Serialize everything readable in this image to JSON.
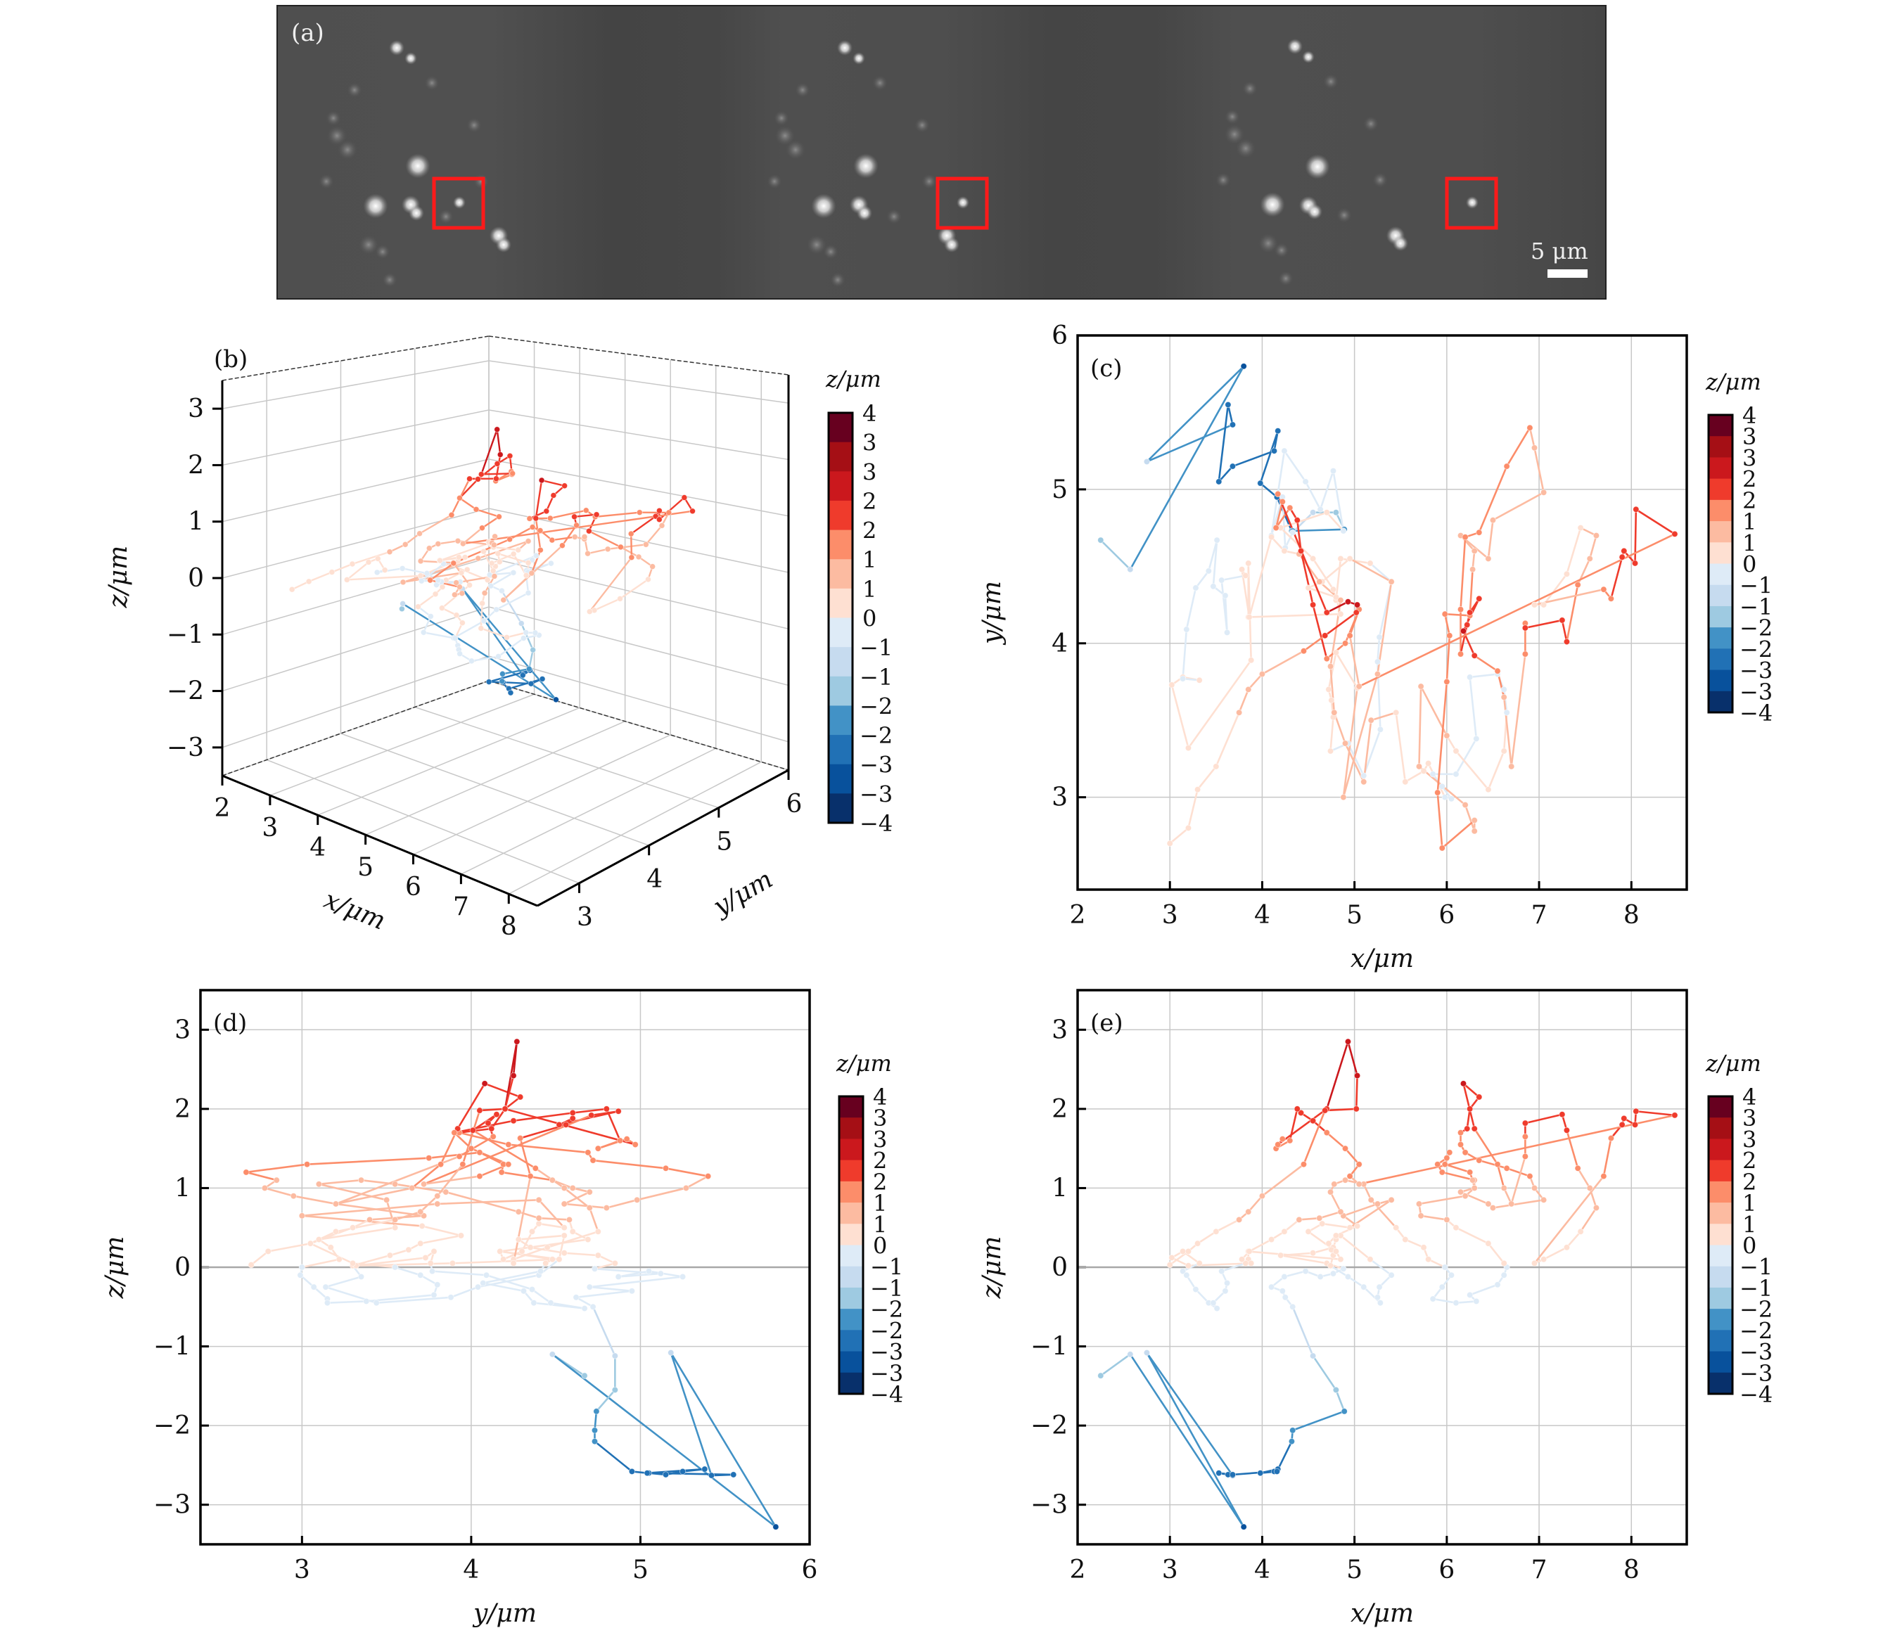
{
  "figure": {
    "panel_a": {
      "label": "(a)",
      "frames": 3,
      "scale_bar_label": "5 μm",
      "roi_color": "#ff1a1a",
      "background_color": "#4a4a4a"
    }
  },
  "chart_data": [
    {
      "id": "b",
      "type": "line3d",
      "label": "(b)",
      "title": "",
      "xlabel": "x/μm",
      "ylabel": "y/μm",
      "zlabel": "z/μm",
      "xlim": [
        2,
        8.6
      ],
      "ylim": [
        2.4,
        6
      ],
      "zlim": [
        -3.5,
        3.5
      ],
      "xticks": [
        "2",
        "3",
        "4",
        "5",
        "6",
        "7",
        "8"
      ],
      "yticks": [
        "3",
        "4",
        "5",
        "6"
      ],
      "zticks": [
        "−3",
        "−2",
        "−1",
        "0",
        "1",
        "2",
        "3"
      ],
      "grid": true,
      "colorbar": true
    },
    {
      "id": "c",
      "type": "line",
      "label": "(c)",
      "projection": "xy",
      "xlabel": "x/μm",
      "ylabel": "y/μm",
      "xlim": [
        2,
        8.6
      ],
      "ylim": [
        2.4,
        6
      ],
      "xticks": [
        "2",
        "3",
        "4",
        "5",
        "6",
        "7",
        "8"
      ],
      "yticks": [
        "3",
        "4",
        "5",
        "6"
      ],
      "grid": true,
      "colorbar": true
    },
    {
      "id": "d",
      "type": "line",
      "label": "(d)",
      "projection": "yz",
      "xlabel": "y/μm",
      "ylabel": "z/μm",
      "xlim": [
        2.4,
        6
      ],
      "ylim": [
        -3.5,
        3.5
      ],
      "xticks": [
        "3",
        "4",
        "5",
        "6"
      ],
      "yticks": [
        "−3",
        "−2",
        "−1",
        "0",
        "1",
        "2",
        "3"
      ],
      "grid": true,
      "colorbar": true
    },
    {
      "id": "e",
      "type": "line",
      "label": "(e)",
      "projection": "xz",
      "xlabel": "x/μm",
      "ylabel": "z/μm",
      "xlim": [
        2,
        8.6
      ],
      "ylim": [
        -3.5,
        3.5
      ],
      "xticks": [
        "2",
        "3",
        "4",
        "5",
        "6",
        "7",
        "8"
      ],
      "yticks": [
        "−3",
        "−2",
        "−1",
        "0",
        "1",
        "2",
        "3"
      ],
      "grid": true,
      "colorbar": true
    }
  ],
  "colorbar": {
    "title": "z/μm",
    "range": [
      -4,
      4
    ],
    "tick_labels": [
      "4",
      "3",
      "3",
      "2",
      "2",
      "1",
      "1",
      "0",
      "−1",
      "−1",
      "−2",
      "−2",
      "−3",
      "−3",
      "−4"
    ],
    "colors": [
      "#67001f",
      "#a50f15",
      "#cb181d",
      "#ef3b2c",
      "#fc8d6a",
      "#fcbba1",
      "#fee0d2",
      "#deebf7",
      "#c6dbef",
      "#9ecae1",
      "#4292c6",
      "#2171b5",
      "#08519c",
      "#08306b"
    ]
  },
  "trajectory": {
    "units": "μm",
    "points": [
      [
        2.25,
        4.67,
        -1.37
      ],
      [
        2.57,
        4.48,
        -1.1
      ],
      [
        3.8,
        5.8,
        -3.28
      ],
      [
        2.75,
        5.18,
        -1.08
      ],
      [
        3.68,
        5.42,
        -2.63
      ],
      [
        3.63,
        5.55,
        -2.62
      ],
      [
        3.53,
        5.05,
        -2.6
      ],
      [
        3.68,
        5.15,
        -2.62
      ],
      [
        4.13,
        5.25,
        -2.58
      ],
      [
        4.17,
        5.38,
        -2.55
      ],
      [
        3.98,
        5.04,
        -2.6
      ],
      [
        4.16,
        4.95,
        -2.58
      ],
      [
        4.32,
        4.73,
        -2.2
      ],
      [
        4.33,
        4.73,
        -2.06
      ],
      [
        4.89,
        4.74,
        -1.82
      ],
      [
        4.8,
        4.85,
        -1.55
      ],
      [
        4.55,
        4.85,
        -1.12
      ],
      [
        4.33,
        4.72,
        -0.5
      ],
      [
        4.25,
        4.62,
        -0.38
      ],
      [
        4.22,
        4.95,
        -0.3
      ],
      [
        4.1,
        4.7,
        -0.25
      ],
      [
        4.24,
        5.25,
        -0.12
      ],
      [
        4.47,
        5.05,
        -0.05
      ],
      [
        4.63,
        4.87,
        -0.12
      ],
      [
        4.77,
        5.12,
        -0.08
      ],
      [
        4.88,
        4.73,
        -0.02
      ],
      [
        4.7,
        4.85,
        0.05
      ],
      [
        4.2,
        4.75,
        0.15
      ],
      [
        4.55,
        4.55,
        0.18
      ],
      [
        4.77,
        4.35,
        0.25
      ],
      [
        4.8,
        4.28,
        0.35
      ],
      [
        4.85,
        4.55,
        0.4
      ],
      [
        5.17,
        4.52,
        0.1
      ],
      [
        5.4,
        4.4,
        -0.1
      ],
      [
        5.27,
        4.04,
        -0.25
      ],
      [
        5.25,
        3.88,
        -0.38
      ],
      [
        5.28,
        3.44,
        -0.45
      ],
      [
        5.1,
        3.14,
        -0.25
      ],
      [
        4.93,
        3.35,
        -0.12
      ],
      [
        4.74,
        3.3,
        0.02
      ],
      [
        4.77,
        3.52,
        0.15
      ],
      [
        4.75,
        3.63,
        0.22
      ],
      [
        4.72,
        3.7,
        0.3
      ],
      [
        4.8,
        3.94,
        0.4
      ],
      [
        5.03,
        3.71,
        0.52
      ],
      [
        4.88,
        3.0,
        0.65
      ],
      [
        5.25,
        3.8,
        0.8
      ],
      [
        5.4,
        4.4,
        0.85
      ],
      [
        4.95,
        4.55,
        0.5
      ],
      [
        4.65,
        4.4,
        0.55
      ],
      [
        4.5,
        4.36,
        0.45
      ],
      [
        4.8,
        4.3,
        0.2
      ],
      [
        4.85,
        4.19,
        0.1
      ],
      [
        3.85,
        4.17,
        0.2
      ],
      [
        3.85,
        4.52,
        0.1
      ],
      [
        3.88,
        3.89,
        0.05
      ],
      [
        3.2,
        3.32,
        0.02
      ],
      [
        3.02,
        3.73,
        0.12
      ],
      [
        3.14,
        3.78,
        0.2
      ],
      [
        3.32,
        3.76,
        0.05
      ],
      [
        3.14,
        3.77,
        -0.05
      ],
      [
        3.18,
        4.09,
        -0.1
      ],
      [
        3.28,
        4.36,
        -0.28
      ],
      [
        3.42,
        4.47,
        -0.45
      ],
      [
        3.51,
        4.67,
        -0.52
      ],
      [
        3.47,
        4.37,
        -0.45
      ],
      [
        3.6,
        4.31,
        -0.3
      ],
      [
        3.62,
        4.07,
        -0.2
      ],
      [
        3.56,
        4.41,
        -0.05
      ],
      [
        3.82,
        4.44,
        0.05
      ],
      [
        3.78,
        4.48,
        0.1
      ],
      [
        3.86,
        4.17,
        0.2
      ],
      [
        4.1,
        4.69,
        0.35
      ],
      [
        4.24,
        4.6,
        0.45
      ],
      [
        4.4,
        4.58,
        0.6
      ],
      [
        4.62,
        4.4,
        0.62
      ],
      [
        4.85,
        4.28,
        0.7
      ],
      [
        4.74,
        3.85,
        0.95
      ],
      [
        4.78,
        3.55,
        1.05
      ],
      [
        4.9,
        3.35,
        1.1
      ],
      [
        5.1,
        3.1,
        1.05
      ],
      [
        5.18,
        3.5,
        0.85
      ],
      [
        5.45,
        3.55,
        0.5
      ],
      [
        5.55,
        3.1,
        0.35
      ],
      [
        5.75,
        3.17,
        0.25
      ],
      [
        5.8,
        3.22,
        0.1
      ],
      [
        5.98,
        3.0,
        0.0
      ],
      [
        6.05,
        2.99,
        -0.1
      ],
      [
        5.95,
        3.07,
        -0.25
      ],
      [
        5.85,
        3.15,
        -0.4
      ],
      [
        6.1,
        3.15,
        -0.45
      ],
      [
        6.32,
        3.38,
        -0.43
      ],
      [
        6.25,
        3.78,
        -0.35
      ],
      [
        6.55,
        3.8,
        -0.22
      ],
      [
        6.62,
        3.7,
        -0.1
      ],
      [
        6.65,
        3.55,
        0.0
      ],
      [
        6.62,
        3.3,
        0.05
      ],
      [
        6.45,
        3.05,
        0.3
      ],
      [
        6.1,
        3.3,
        0.5
      ],
      [
        6.0,
        3.4,
        0.6
      ],
      [
        5.72,
        3.72,
        0.65
      ],
      [
        5.7,
        3.2,
        0.8
      ],
      [
        6.2,
        2.95,
        0.9
      ],
      [
        6.3,
        2.78,
        1.0
      ],
      [
        6.3,
        2.85,
        1.1
      ],
      [
        5.95,
        2.67,
        1.2
      ],
      [
        5.9,
        3.03,
        1.3
      ],
      [
        6.0,
        3.75,
        1.38
      ],
      [
        6.03,
        4.05,
        1.45
      ],
      [
        5.98,
        4.19,
        1.3
      ],
      [
        6.25,
        4.18,
        1.2
      ],
      [
        6.28,
        4.48,
        1.1
      ],
      [
        6.3,
        4.6,
        1.0
      ],
      [
        6.15,
        4.7,
        0.95
      ],
      [
        6.45,
        4.55,
        0.8
      ],
      [
        6.5,
        4.8,
        0.75
      ],
      [
        7.05,
        4.98,
        0.85
      ],
      [
        6.95,
        5.27,
        1.0
      ],
      [
        6.9,
        5.4,
        1.15
      ],
      [
        6.65,
        5.15,
        1.25
      ],
      [
        6.35,
        4.72,
        1.35
      ],
      [
        6.2,
        4.69,
        1.45
      ],
      [
        6.15,
        4.22,
        1.55
      ],
      [
        6.15,
        3.93,
        1.7
      ],
      [
        6.22,
        4.12,
        1.75
      ],
      [
        6.25,
        4.2,
        2.0
      ],
      [
        6.35,
        4.29,
        2.15
      ],
      [
        6.18,
        4.08,
        2.32
      ],
      [
        6.3,
        3.92,
        1.75
      ],
      [
        6.55,
        3.82,
        1.3
      ],
      [
        6.62,
        3.65,
        1.0
      ],
      [
        6.7,
        3.2,
        0.8
      ],
      [
        6.85,
        3.93,
        1.4
      ],
      [
        6.85,
        4.13,
        1.65
      ],
      [
        6.85,
        4.1,
        1.82
      ],
      [
        7.25,
        4.15,
        1.93
      ],
      [
        7.3,
        4.01,
        1.73
      ],
      [
        7.42,
        4.38,
        1.25
      ],
      [
        7.55,
        4.55,
        1.0
      ],
      [
        7.62,
        4.7,
        0.75
      ],
      [
        7.45,
        4.75,
        0.45
      ],
      [
        7.3,
        4.45,
        0.25
      ],
      [
        7.05,
        4.25,
        0.1
      ],
      [
        6.95,
        4.25,
        0.05
      ],
      [
        7.7,
        4.35,
        1.15
      ],
      [
        7.78,
        4.29,
        1.63
      ],
      [
        7.9,
        4.56,
        1.8
      ],
      [
        7.92,
        4.6,
        1.88
      ],
      [
        8.04,
        4.52,
        1.8
      ],
      [
        8.05,
        4.87,
        1.97
      ],
      [
        8.47,
        4.71,
        1.92
      ],
      [
        5.05,
        3.72,
        1.05
      ],
      [
        4.95,
        4.05,
        1.15
      ],
      [
        5.05,
        4.22,
        1.3
      ],
      [
        4.9,
        4.0,
        1.5
      ],
      [
        4.7,
        3.9,
        1.7
      ],
      [
        4.55,
        4.25,
        1.85
      ],
      [
        4.42,
        4.6,
        1.95
      ],
      [
        4.38,
        4.8,
        2.0
      ],
      [
        4.3,
        4.88,
        1.6
      ],
      [
        4.15,
        4.75,
        1.5
      ],
      [
        4.22,
        4.92,
        1.62
      ],
      [
        4.17,
        4.97,
        1.55
      ],
      [
        4.7,
        4.2,
        2.0
      ],
      [
        4.93,
        4.27,
        2.85
      ],
      [
        5.03,
        4.25,
        2.42
      ],
      [
        5.02,
        4.2,
        2.0
      ],
      [
        4.68,
        4.05,
        1.98
      ],
      [
        4.45,
        3.95,
        1.3
      ],
      [
        4.0,
        3.8,
        0.9
      ],
      [
        3.85,
        3.7,
        0.7
      ],
      [
        3.75,
        3.55,
        0.6
      ],
      [
        3.5,
        3.2,
        0.45
      ],
      [
        3.3,
        3.05,
        0.3
      ],
      [
        3.2,
        2.8,
        0.2
      ],
      [
        3.0,
        2.7,
        0.03
      ]
    ]
  }
}
